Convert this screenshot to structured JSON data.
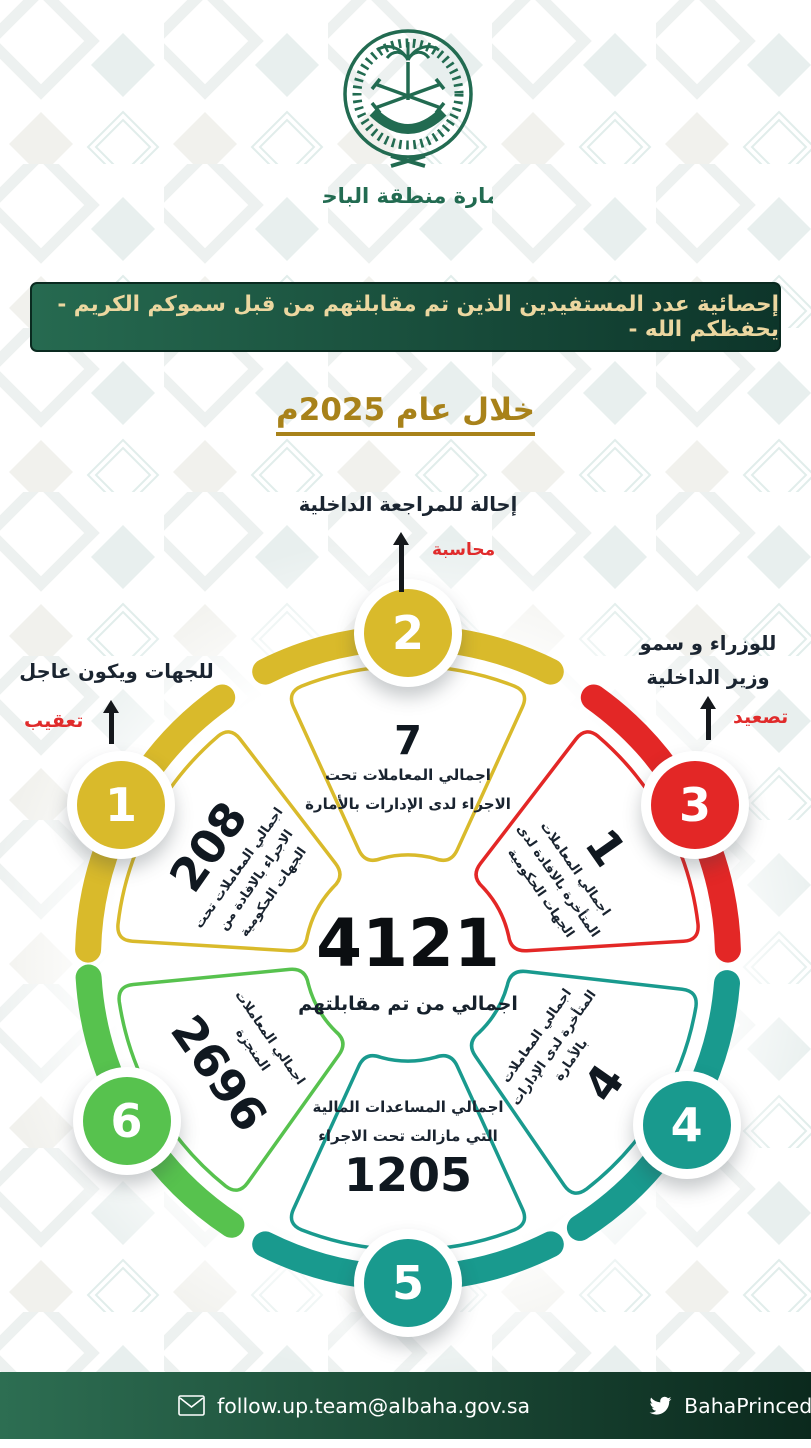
{
  "logo": {
    "caption": "إمارة منطقة الباحة"
  },
  "banner": {
    "text": "إحصائية عدد المستفيدين الذين تم مقابلتهم من قبل سموكم الكريم - يحفظكم الله -"
  },
  "title": {
    "text": "خلال عام 2025م"
  },
  "center": {
    "value": "4121",
    "label": "اجمالي من تم مقابلتهم"
  },
  "segments": [
    {
      "num": "1",
      "value": "208",
      "label": "اجمالي المعاملات تحت الاجراء بالافادة من الجهات الحكومية",
      "color": "#d9ba2b",
      "callout": {
        "label": "للجهات ويكون عاجل",
        "action": "تعقيب"
      }
    },
    {
      "num": "2",
      "value": "7",
      "label": "اجمالي المعاملات تحت الاجراء لدى الإدارات بالأمارة",
      "color": "#d9ba2b",
      "callout": {
        "label": "إحالة للمراجعة الداخلية",
        "action": "محاسبة"
      }
    },
    {
      "num": "3",
      "value": "1",
      "label": "اجمالي المعاملات المتأخرة بالافادة لدى الجهات الحكومية",
      "color": "#e32726",
      "callout": {
        "label": "للوزراء و سمو وزير الداخلية",
        "action": "تصعيد"
      }
    },
    {
      "num": "4",
      "value": "4",
      "label": "اجمالي المعاملات المتأخرة لدى الإدارات بالأمارة",
      "color": "#199a8e"
    },
    {
      "num": "5",
      "value": "1205",
      "label": "اجمالي المساعدات المالية التي مازالت تحت الاجراء",
      "color": "#199a8e"
    },
    {
      "num": "6",
      "value": "2696",
      "label": "اجمالي المعاملات المنجزة",
      "color": "#57c24e"
    }
  ],
  "footer": {
    "email": "follow.up.team@albaha.gov.sa",
    "twitter": "BahaPrincedom"
  },
  "colors": {
    "emblem_green": "#226b51",
    "gold": "#a8821a",
    "action_red": "#e02b2b",
    "banner_light": "#266a50",
    "banner_dark": "#0d352a",
    "text_dark": "#1a2430"
  }
}
